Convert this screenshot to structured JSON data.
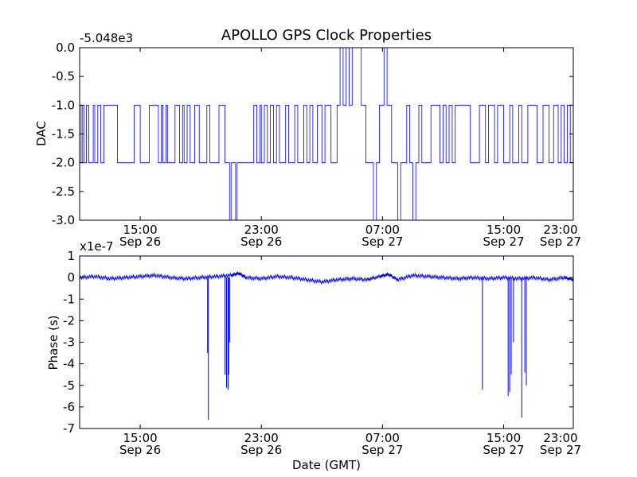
{
  "figure": {
    "title": "APOLLO GPS Clock Properties",
    "xlabel": "Date (GMT)"
  },
  "chart_data": [
    {
      "type": "line",
      "title": "APOLLO GPS Clock Properties",
      "ylabel": "DAC",
      "offset_text": "-5.048e3",
      "color": "#0000ff",
      "ylim": [
        -3.0,
        0.0
      ],
      "xlim": [
        11.0,
        43.6
      ],
      "x_unit": "hours since Sep 26 00:00 GMT",
      "yticks": [
        0.0,
        -0.5,
        -1.0,
        -1.5,
        -2.0,
        -2.5,
        -3.0
      ],
      "ytick_labels": [
        "0.0",
        "-0.5",
        "-1.0",
        "-1.5",
        "-2.0",
        "-2.5",
        "-3.0"
      ],
      "xticks": [
        15,
        23,
        31,
        39,
        47
      ],
      "xtick_labels": [
        [
          "15:00",
          "Sep 26"
        ],
        [
          "23:00",
          "Sep 26"
        ],
        [
          "07:00",
          "Sep 27"
        ],
        [
          "15:00",
          "Sep 27"
        ],
        [
          "23:00",
          "Sep 27"
        ]
      ],
      "series": [
        {
          "x": [
            11.0,
            11.1,
            11.2,
            11.3,
            11.45,
            11.6,
            11.9,
            12.0,
            12.2,
            12.4,
            12.6,
            13.5,
            14.6,
            15.0,
            15.6,
            16.2,
            16.4,
            16.5,
            16.7,
            16.8,
            17.3,
            17.6,
            17.8,
            17.9,
            18.1,
            18.3,
            18.6,
            18.9,
            19.4,
            19.6,
            20.2,
            20.6,
            20.9,
            21.0,
            21.3,
            21.4,
            22.5,
            22.7,
            22.9,
            23.0,
            23.2,
            23.4,
            23.6,
            23.8,
            24.0,
            24.2,
            24.6,
            24.8,
            25.2,
            25.4,
            25.8,
            26.0,
            26.2,
            26.4,
            26.7,
            27.0,
            27.2,
            27.6,
            28.0,
            28.2,
            28.4,
            28.6,
            28.8,
            29.0,
            29.6,
            29.9,
            30.4,
            30.6,
            30.8,
            31.1,
            31.3,
            31.6,
            32.0,
            32.2,
            32.6,
            32.8,
            33.0,
            33.2,
            33.4,
            33.6,
            34.2,
            34.8,
            35.0,
            35.2,
            35.4,
            35.6,
            35.8,
            36.8,
            37.4,
            37.8,
            38.0,
            38.4,
            38.6,
            39.0,
            39.4,
            39.6,
            40.0,
            40.2,
            40.6,
            41.2,
            41.6,
            42.0,
            42.3,
            42.6,
            42.8,
            43.0,
            43.2,
            43.4,
            43.6
          ],
          "y": [
            -1,
            -2,
            -1,
            -2,
            -1,
            -2,
            -1,
            -2,
            -1,
            -2,
            -1,
            -2,
            -1,
            -2,
            -1,
            -2,
            -1,
            -2,
            -1,
            -2,
            -1,
            -2,
            -1,
            -2,
            -1,
            -2,
            -1,
            -2,
            -1,
            -2,
            -1,
            -2,
            -3,
            -2,
            -3,
            -2,
            -1,
            -2,
            -1,
            -2,
            -1,
            -2,
            -1,
            -2,
            -1,
            -2,
            -1,
            -2,
            -1,
            -2,
            -1,
            -2,
            -1,
            -2,
            -1,
            -2,
            -1,
            -2,
            -1,
            0,
            -1,
            0,
            -1,
            0,
            -1,
            -2,
            -3,
            -2,
            -1,
            0,
            -1,
            -2,
            -3,
            -2,
            -1,
            -2,
            -3,
            -2,
            -1,
            -2,
            -1,
            -2,
            -1,
            -2,
            -1,
            -2,
            -1,
            -2,
            -1,
            -2,
            -1,
            -2,
            -1,
            -2,
            -1,
            -2,
            -1,
            -2,
            -1,
            -2,
            -1,
            -2,
            -1,
            -2,
            -1,
            -2,
            -1,
            -2,
            -1
          ]
        }
      ]
    },
    {
      "type": "line",
      "ylabel": "Phase (s)",
      "offset_text": "x1e-7",
      "color": "#0000ff",
      "ylim": [
        -7,
        1
      ],
      "xlim": [
        11.0,
        43.6
      ],
      "x_unit": "hours since Sep 26 00:00 GMT",
      "yticks": [
        1,
        0,
        -1,
        -2,
        -3,
        -4,
        -5,
        -6,
        -7
      ],
      "ytick_labels": [
        "1",
        "0",
        "-1",
        "-2",
        "-3",
        "-4",
        "-5",
        "-6",
        "-7"
      ],
      "xticks": [
        15,
        23,
        31,
        39,
        47
      ],
      "xtick_labels": [
        [
          "15:00",
          "Sep 26"
        ],
        [
          "23:00",
          "Sep 26"
        ],
        [
          "07:00",
          "Sep 27"
        ],
        [
          "15:00",
          "Sep 27"
        ],
        [
          "23:00",
          "Sep 27"
        ]
      ],
      "baseline": [
        [
          11.0,
          0.0
        ],
        [
          12.0,
          0.05
        ],
        [
          13.0,
          -0.05
        ],
        [
          14.0,
          0.0
        ],
        [
          15.0,
          0.05
        ],
        [
          16.0,
          0.1
        ],
        [
          17.0,
          0.0
        ],
        [
          18.0,
          -0.05
        ],
        [
          19.0,
          0.0
        ],
        [
          20.0,
          0.05
        ],
        [
          21.0,
          0.1
        ],
        [
          21.5,
          0.2
        ],
        [
          22.0,
          0.0
        ],
        [
          23.0,
          -0.05
        ],
        [
          24.0,
          0.05
        ],
        [
          25.0,
          0.0
        ],
        [
          26.0,
          -0.1
        ],
        [
          27.0,
          -0.2
        ],
        [
          28.0,
          -0.1
        ],
        [
          29.0,
          -0.05
        ],
        [
          30.0,
          -0.1
        ],
        [
          30.8,
          0.05
        ],
        [
          31.4,
          0.15
        ],
        [
          32.0,
          -0.1
        ],
        [
          33.0,
          0.1
        ],
        [
          34.0,
          0.05
        ],
        [
          35.0,
          0.0
        ],
        [
          36.0,
          -0.05
        ],
        [
          37.0,
          0.0
        ],
        [
          38.0,
          -0.05
        ],
        [
          39.0,
          0.0
        ],
        [
          40.0,
          -0.05
        ],
        [
          41.0,
          0.0
        ],
        [
          42.0,
          -0.1
        ],
        [
          43.0,
          0.0
        ],
        [
          43.6,
          -0.1
        ]
      ],
      "spikes": [
        [
          19.5,
          -6.6
        ],
        [
          19.45,
          -3.5
        ],
        [
          20.6,
          -4.5
        ],
        [
          20.7,
          -5.1
        ],
        [
          20.8,
          -5.2
        ],
        [
          20.85,
          -4.5
        ],
        [
          20.9,
          -3.0
        ],
        [
          37.6,
          -5.2
        ],
        [
          39.3,
          -5.5
        ],
        [
          39.4,
          -5.3
        ],
        [
          39.5,
          -4.5
        ],
        [
          39.65,
          -3.0
        ],
        [
          40.2,
          -6.5
        ],
        [
          40.4,
          -4.4
        ],
        [
          40.5,
          -5.0
        ]
      ]
    }
  ]
}
